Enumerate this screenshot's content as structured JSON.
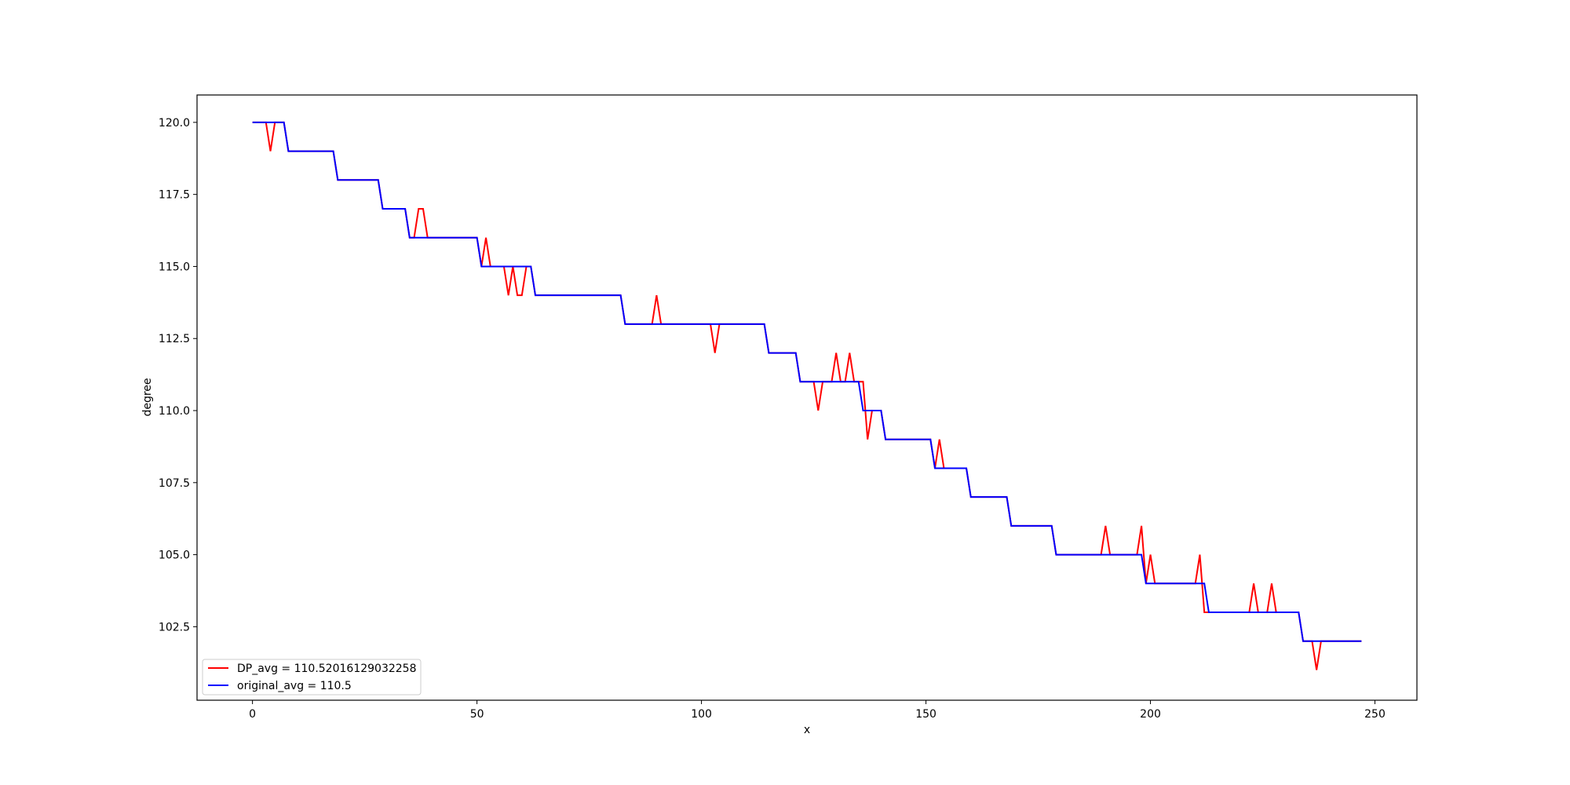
{
  "chart_data": {
    "type": "line",
    "title": "",
    "xlabel": "x",
    "ylabel": "degree",
    "xlim": [
      -12.35,
      259.35
    ],
    "ylim": [
      99.95,
      120.95
    ],
    "xticks": [
      0,
      50,
      100,
      150,
      200,
      250
    ],
    "yticks": [
      102.5,
      105.0,
      107.5,
      110.0,
      112.5,
      115.0,
      117.5,
      120.0
    ],
    "xtick_labels": [
      "0",
      "50",
      "100",
      "150",
      "200",
      "250"
    ],
    "ytick_labels": [
      "102.5",
      "105.0",
      "107.5",
      "110.0",
      "112.5",
      "115.0",
      "117.5",
      "120.0"
    ],
    "grid": false,
    "legend": {
      "placement": "lower-left"
    },
    "series": [
      {
        "name": "DP_avg = 110.52016129032258",
        "color": "#ff0000",
        "x": [
          0,
          3,
          4,
          5,
          7,
          8,
          18,
          19,
          28,
          29,
          34,
          35,
          36,
          37,
          38,
          39,
          50,
          51,
          52,
          53,
          56,
          57,
          58,
          59,
          60,
          61,
          62,
          63,
          82,
          83,
          89,
          90,
          91,
          102,
          103,
          104,
          114,
          115,
          121,
          122,
          125,
          126,
          127,
          129,
          130,
          131,
          132,
          133,
          134,
          135,
          136,
          137,
          138,
          139,
          140,
          141,
          151,
          152,
          153,
          154,
          159,
          160,
          168,
          169,
          178,
          179,
          189,
          190,
          191,
          197,
          198,
          199,
          200,
          201,
          210,
          211,
          212,
          213,
          222,
          223,
          224,
          226,
          227,
          228,
          233,
          234,
          236,
          237,
          238,
          247
        ],
        "values": [
          120,
          120,
          119,
          120,
          120,
          119,
          119,
          118,
          118,
          117,
          117,
          116,
          116,
          117,
          117,
          116,
          116,
          115,
          116,
          115,
          115,
          114,
          115,
          114,
          114,
          115,
          115,
          114,
          114,
          113,
          113,
          114,
          113,
          113,
          112,
          113,
          113,
          112,
          112,
          111,
          111,
          110,
          111,
          111,
          112,
          111,
          111,
          112,
          111,
          111,
          111,
          109,
          110,
          110,
          110,
          109,
          109,
          108,
          109,
          108,
          108,
          107,
          107,
          106,
          106,
          105,
          105,
          106,
          105,
          105,
          106,
          104,
          105,
          104,
          104,
          105,
          103,
          103,
          103,
          104,
          103,
          103,
          104,
          103,
          103,
          102,
          102,
          101,
          102,
          102
        ]
      },
      {
        "name": "original_avg = 110.5",
        "color": "#0000ff",
        "x": [
          0,
          7,
          8,
          18,
          19,
          28,
          29,
          34,
          35,
          50,
          51,
          62,
          63,
          82,
          83,
          114,
          115,
          121,
          122,
          135,
          136,
          140,
          141,
          151,
          152,
          159,
          160,
          168,
          169,
          178,
          179,
          198,
          199,
          212,
          213,
          233,
          234,
          247
        ],
        "values": [
          120,
          120,
          119,
          119,
          118,
          118,
          117,
          117,
          116,
          116,
          115,
          115,
          114,
          114,
          113,
          113,
          112,
          112,
          111,
          111,
          110,
          110,
          109,
          109,
          108,
          108,
          107,
          107,
          106,
          106,
          105,
          105,
          104,
          104,
          103,
          103,
          102,
          102
        ]
      }
    ]
  }
}
